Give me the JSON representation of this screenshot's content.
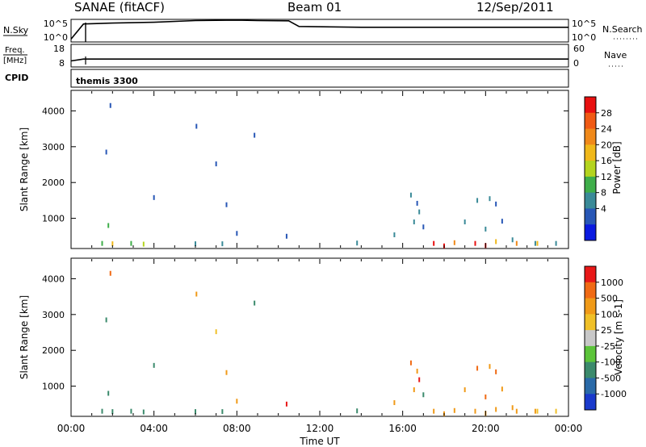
{
  "header": {
    "station": "SANAE (fitACF)",
    "beam": "Beam 01",
    "date": "12/Sep/2011"
  },
  "nsky_panel": {
    "left_label": "N.Sky",
    "left_ticks": [
      "10^5",
      "10^0"
    ],
    "right_label": "N.Search",
    "right_ticks": [
      "10^5",
      "10^0"
    ]
  },
  "freq_panel": {
    "left_label_line1": "Freq.",
    "left_label_line2": "[MHz]",
    "left_ticks": [
      "18",
      "8"
    ],
    "right_label": "Nave",
    "right_ticks": [
      "60",
      "0"
    ]
  },
  "cpid": {
    "label": "CPID",
    "value": "themis 3300"
  },
  "xaxis": {
    "label": "Time UT",
    "ticks": [
      "00:00",
      "04:00",
      "08:00",
      "12:00",
      "16:00",
      "20:00",
      "00:00"
    ],
    "range_hours": [
      0,
      24
    ]
  },
  "power_panel": {
    "ylabel": "Slant Range [km]",
    "yticks": [
      "4000",
      "3000",
      "2000",
      "1000"
    ],
    "colorbar_label": "Power [dB]",
    "colorbar_ticks": [
      "28",
      "24",
      "20",
      "16",
      "12",
      "8",
      "4"
    ],
    "colors": [
      "#0a1ae0",
      "#2857b6",
      "#3a8a98",
      "#3fae4a",
      "#b4d41e",
      "#f0b81a",
      "#f0891a",
      "#f05a14",
      "#e81010"
    ]
  },
  "velocity_panel": {
    "ylabel": "Slant Range [km]",
    "yticks": [
      "4000",
      "3000",
      "2000",
      "1000"
    ],
    "colorbar_label": "Velocity [m s-1]",
    "colorbar_ticks": [
      "1000",
      "500",
      "100",
      "25",
      "-25",
      "-100",
      "-500",
      "-1000"
    ],
    "colors": [
      "#1a3acc",
      "#2a6aa8",
      "#3b8a6c",
      "#5cc43a",
      "#c8c8c8",
      "#f0c028",
      "#f09a18",
      "#f06a14",
      "#e81818"
    ]
  },
  "chart_data": [
    {
      "type": "line",
      "title": "",
      "xlabel": "",
      "ylabel": "N.Sky",
      "x_unit": "hours UT",
      "series": [
        {
          "x": [
            0.0,
            0.6,
            2.0,
            4.0,
            6.0,
            8.0,
            9.0,
            10.5,
            11.0,
            14.0,
            18.0,
            22.0,
            24.0
          ],
          "y_fraction_of_panel": [
            0.1,
            0.82,
            0.86,
            0.9,
            0.98,
            1.0,
            0.98,
            0.97,
            0.7,
            0.66,
            0.66,
            0.66,
            0.66
          ]
        }
      ]
    },
    {
      "type": "line",
      "title": "",
      "xlabel": "",
      "ylabel": "Freq. [MHz]",
      "x_unit": "hours UT",
      "series": [
        {
          "x": [
            0.0,
            0.6,
            24.0
          ],
          "y": [
            10.5,
            11.4,
            11.4
          ]
        }
      ]
    },
    {
      "type": "scatter",
      "title": "",
      "xlabel": "Time UT",
      "ylabel": "Slant Range [km]",
      "x_unit": "hours UT",
      "ylim": [
        180,
        4550
      ],
      "colorbar": "Power [dB]",
      "points": [
        [
          1.9,
          4150,
          1
        ],
        [
          1.7,
          2850,
          1
        ],
        [
          6.05,
          3570,
          1
        ],
        [
          7.0,
          2520,
          1
        ],
        [
          8.85,
          3320,
          1
        ],
        [
          4.0,
          1580,
          1
        ],
        [
          7.5,
          1380,
          1
        ],
        [
          1.8,
          800,
          3
        ],
        [
          8.0,
          580,
          1
        ],
        [
          10.4,
          500,
          1
        ],
        [
          13.8,
          310,
          2
        ],
        [
          15.6,
          540,
          2
        ],
        [
          16.4,
          1650,
          2
        ],
        [
          16.7,
          1420,
          1
        ],
        [
          16.8,
          1180,
          2
        ],
        [
          16.55,
          900,
          2
        ],
        [
          17.0,
          760,
          1
        ],
        [
          19.6,
          1500,
          2
        ],
        [
          20.2,
          1550,
          2
        ],
        [
          20.5,
          1400,
          1
        ],
        [
          19.0,
          900,
          2
        ],
        [
          20.0,
          700,
          2
        ],
        [
          20.8,
          920,
          1
        ],
        [
          21.3,
          400,
          2
        ],
        [
          22.4,
          300,
          2
        ],
        [
          23.4,
          300,
          2
        ],
        [
          1.5,
          300,
          3
        ],
        [
          2.0,
          290,
          5
        ],
        [
          2.9,
          300,
          3
        ],
        [
          3.5,
          280,
          4
        ],
        [
          6.0,
          290,
          2
        ],
        [
          7.3,
          290,
          2
        ],
        [
          17.5,
          300,
          8
        ],
        [
          18.5,
          320,
          6
        ],
        [
          19.5,
          300,
          8
        ],
        [
          20.5,
          350,
          5
        ],
        [
          21.5,
          300,
          6
        ],
        [
          22.5,
          300,
          5
        ],
        [
          18.0,
          230,
          8
        ],
        [
          20.0,
          240,
          8
        ]
      ]
    },
    {
      "type": "scatter",
      "title": "",
      "xlabel": "Time UT",
      "ylabel": "Slant Range [km]",
      "x_unit": "hours UT",
      "ylim": [
        180,
        4550
      ],
      "colorbar": "Velocity [m s-1]",
      "points": [
        [
          1.9,
          4150,
          7
        ],
        [
          1.7,
          2850,
          2
        ],
        [
          6.05,
          3570,
          6
        ],
        [
          7.0,
          2520,
          5
        ],
        [
          8.85,
          3320,
          2
        ],
        [
          4.0,
          1580,
          2
        ],
        [
          7.5,
          1380,
          6
        ],
        [
          1.8,
          800,
          2
        ],
        [
          8.0,
          580,
          6
        ],
        [
          10.4,
          500,
          8
        ],
        [
          13.8,
          310,
          2
        ],
        [
          15.6,
          540,
          6
        ],
        [
          16.4,
          1650,
          7
        ],
        [
          16.7,
          1420,
          6
        ],
        [
          16.8,
          1180,
          8
        ],
        [
          16.55,
          900,
          6
        ],
        [
          17.0,
          760,
          2
        ],
        [
          19.6,
          1500,
          7
        ],
        [
          20.2,
          1550,
          6
        ],
        [
          20.5,
          1400,
          7
        ],
        [
          19.0,
          900,
          6
        ],
        [
          20.0,
          700,
          7
        ],
        [
          20.8,
          920,
          6
        ],
        [
          21.3,
          400,
          6
        ],
        [
          22.4,
          300,
          6
        ],
        [
          23.4,
          300,
          5
        ],
        [
          1.5,
          300,
          2
        ],
        [
          2.0,
          290,
          2
        ],
        [
          2.9,
          300,
          2
        ],
        [
          3.5,
          280,
          2
        ],
        [
          6.0,
          290,
          2
        ],
        [
          7.3,
          290,
          2
        ],
        [
          17.5,
          300,
          6
        ],
        [
          18.5,
          320,
          6
        ],
        [
          19.5,
          300,
          6
        ],
        [
          20.5,
          350,
          6
        ],
        [
          21.5,
          300,
          6
        ],
        [
          22.5,
          300,
          5
        ],
        [
          18.0,
          230,
          6
        ],
        [
          20.0,
          240,
          6
        ]
      ]
    }
  ]
}
